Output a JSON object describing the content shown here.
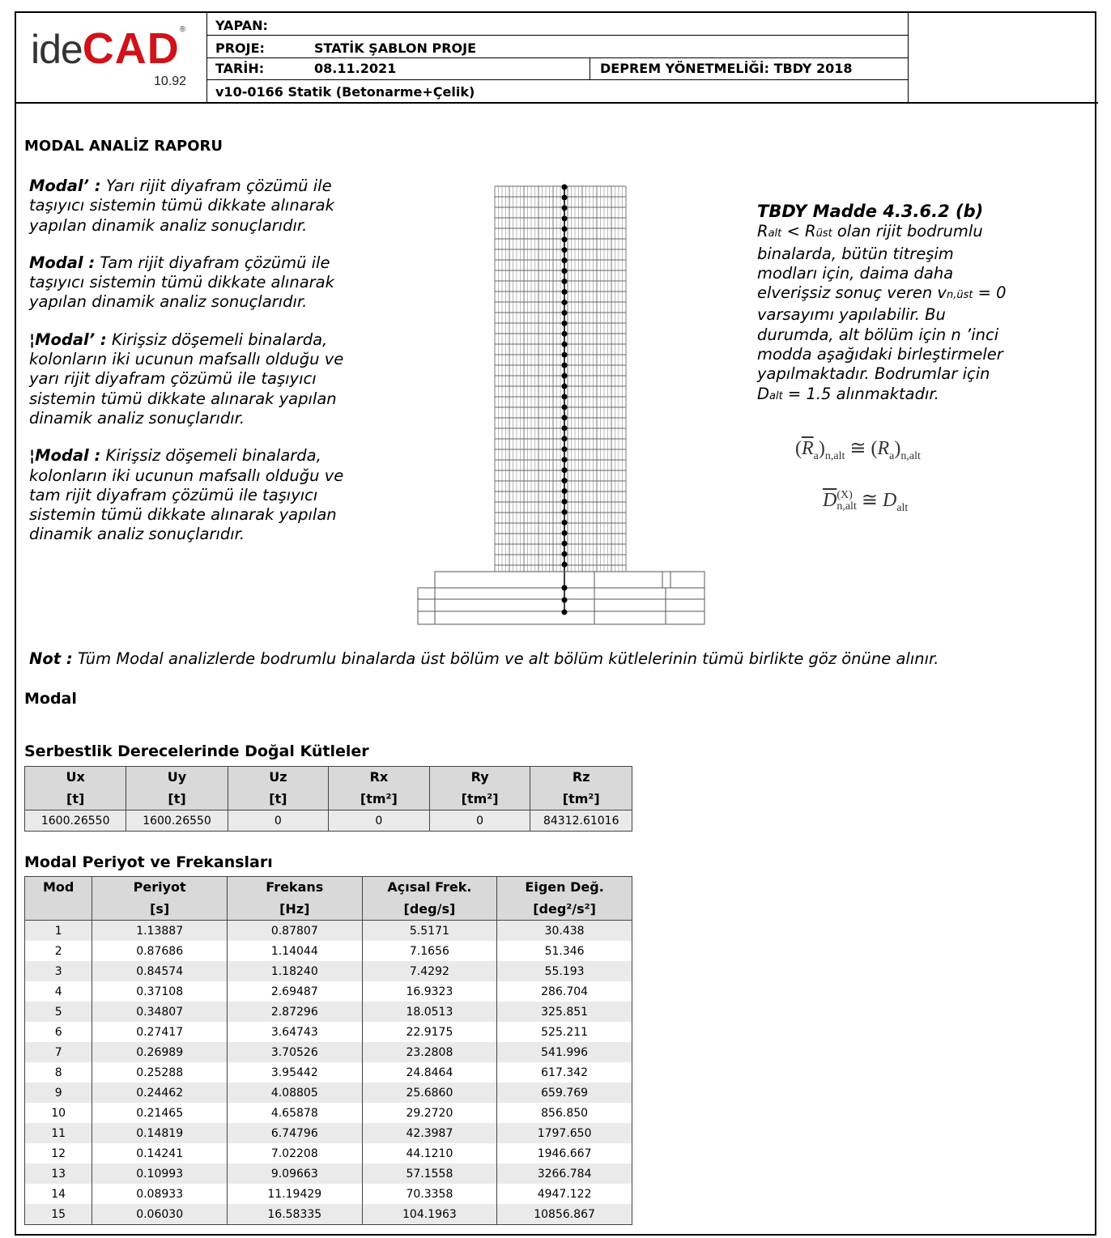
{
  "header": {
    "logo": {
      "text_ide": "ide",
      "text_cad": "CAD",
      "registered": "®",
      "version": "10.92"
    },
    "yapan_label": "YAPAN:",
    "yapan_value": "",
    "proje_label": "PROJE:",
    "proje_value": "STATİK ŞABLON PROJE",
    "tarih_label": "TARİH:",
    "tarih_value": "08.11.2021",
    "deprem": "DEPREM YÖNETMELİĞİ: TBDY 2018",
    "program": "v10-0166 Statik (Betonarme+Çelik)"
  },
  "report_title": "MODAL ANALİZ RAPORU",
  "definitions": [
    {
      "term": "Modal’ :",
      "text": "Yarı rijit diyafram çözümü ile taşıyıcı sistemin tümü dikkate alınarak yapılan dinamik analiz sonuçlarıdır."
    },
    {
      "term": "Modal :",
      "text": "Tam rijit diyafram çözümü ile taşıyıcı sistemin tümü dikkate alınarak yapılan dinamik analiz sonuçlarıdır."
    },
    {
      "term": "¦Modal’ :",
      "text": "Kirişsiz döşemeli binalarda, kolonların iki ucunun mafsallı olduğu ve yarı rijit diyafram çözümü ile taşıyıcı sistemin tümü dikkate alınarak yapılan dinamik analiz sonuçlarıdır."
    },
    {
      "term": "¦Modal :",
      "text": "Kirişsiz döşemeli binalarda, kolonların iki ucunun mafsallı olduğu ve tam rijit diyafram çözümü ile taşıyıcı sistemin tümü dikkate alınarak yapılan dinamik analiz sonuçlarıdır."
    }
  ],
  "tbdy": {
    "title": "TBDY Madde 4.3.6.2 (b)",
    "r_alt": "R",
    "r_alt_sub": "alt",
    "lt": " < ",
    "r_ust": "R",
    "r_ust_sub": "üst",
    "line1_rest": " olan rijit bodrumlu binalarda, bütün titreşim modları için, daima daha elverişsiz sonuç veren ",
    "v": "v",
    "v_sub": "n,üst",
    "line2_rest": " = 0 varsayımı yapılabilir. Bu durumda, alt bölüm için n ’inci modda aşağıdaki birleştirmeler yapılmaktadır. Bodrumlar için ",
    "d": "D",
    "d_sub": "alt",
    "line3_rest": " = 1.5 alınmaktadır.",
    "formula1": {
      "lhs": "R",
      "lhs_sub": "a",
      "lhs_outer_sub": "n,alt",
      "op": "≅",
      "rhs": "R",
      "rhs_sub": "a",
      "rhs_outer_sub": "n,alt"
    },
    "formula2": {
      "lhs": "D",
      "lhs_sup": "(X)",
      "lhs_sub": "n,alt",
      "op": "≅",
      "rhs": "D",
      "rhs_sub": "alt"
    }
  },
  "note": {
    "term": "Not :",
    "text": "Tüm Modal analizlerde bodrumlu binalarda üst bölüm ve alt bölüm kütlelerinin tümü birlikte göz önüne alınır."
  },
  "section_modal": "Modal",
  "mass_table": {
    "title": "Serbestlik Derecelerinde Doğal Kütleler",
    "headers": [
      [
        "Ux",
        "[t]"
      ],
      [
        "Uy",
        "[t]"
      ],
      [
        "Uz",
        "[t]"
      ],
      [
        "Rx",
        "[tm²]"
      ],
      [
        "Ry",
        "[tm²]"
      ],
      [
        "Rz",
        "[tm²]"
      ]
    ],
    "values": [
      "1600.26550",
      "1600.26550",
      "0",
      "0",
      "0",
      "84312.61016"
    ]
  },
  "period_table": {
    "title": "Modal Periyot ve Frekansları",
    "headers": [
      [
        "Mod",
        ""
      ],
      [
        "Periyot",
        "[s]"
      ],
      [
        "Frekans",
        "[Hz]"
      ],
      [
        "Açısal Frek.",
        "[deg/s]"
      ],
      [
        "Eigen Değ.",
        "[deg²/s²]"
      ]
    ],
    "rows": [
      [
        "1",
        "1.13887",
        "0.87807",
        "5.5171",
        "30.438"
      ],
      [
        "2",
        "0.87686",
        "1.14044",
        "7.1656",
        "51.346"
      ],
      [
        "3",
        "0.84574",
        "1.18240",
        "7.4292",
        "55.193"
      ],
      [
        "4",
        "0.37108",
        "2.69487",
        "16.9323",
        "286.704"
      ],
      [
        "5",
        "0.34807",
        "2.87296",
        "18.0513",
        "325.851"
      ],
      [
        "6",
        "0.27417",
        "3.64743",
        "22.9175",
        "525.211"
      ],
      [
        "7",
        "0.26989",
        "3.70526",
        "23.2808",
        "541.996"
      ],
      [
        "8",
        "0.25288",
        "3.95442",
        "24.8464",
        "617.342"
      ],
      [
        "9",
        "0.24462",
        "4.08805",
        "25.6860",
        "659.769"
      ],
      [
        "10",
        "0.21465",
        "4.65878",
        "29.2720",
        "856.850"
      ],
      [
        "11",
        "0.14819",
        "6.74796",
        "42.3987",
        "1797.650"
      ],
      [
        "12",
        "0.14241",
        "7.02208",
        "44.1210",
        "1946.667"
      ],
      [
        "13",
        "0.10993",
        "9.09663",
        "57.1558",
        "3266.784"
      ],
      [
        "14",
        "0.08933",
        "11.19429",
        "70.3358",
        "4947.122"
      ],
      [
        "15",
        "0.06030",
        "16.58335",
        "104.1963",
        "10856.867"
      ]
    ]
  },
  "colors": {
    "brand_red": "#d0121b",
    "header_bg": "#d9d9d9",
    "row_alt": "#eaeaea"
  }
}
